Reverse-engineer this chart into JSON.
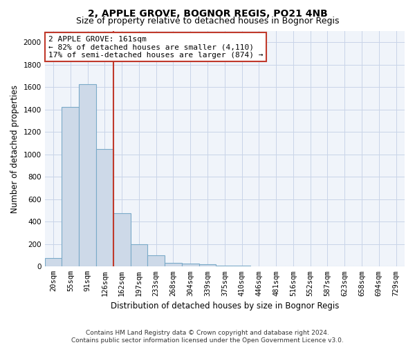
{
  "title1": "2, APPLE GROVE, BOGNOR REGIS, PO21 4NB",
  "title2": "Size of property relative to detached houses in Bognor Regis",
  "xlabel": "Distribution of detached houses by size in Bognor Regis",
  "ylabel": "Number of detached properties",
  "categories": [
    "20sqm",
    "55sqm",
    "91sqm",
    "126sqm",
    "162sqm",
    "197sqm",
    "233sqm",
    "268sqm",
    "304sqm",
    "339sqm",
    "375sqm",
    "410sqm",
    "446sqm",
    "481sqm",
    "516sqm",
    "552sqm",
    "587sqm",
    "623sqm",
    "658sqm",
    "694sqm",
    "729sqm"
  ],
  "values": [
    75,
    1425,
    1625,
    1050,
    475,
    200,
    100,
    35,
    25,
    20,
    10,
    5,
    2,
    1,
    1,
    0,
    0,
    0,
    0,
    0,
    0
  ],
  "bar_color": "#cdd9e8",
  "bar_edge_color": "#7aaac8",
  "vline_x_index": 4,
  "vline_color": "#c0392b",
  "annotation_line1": "2 APPLE GROVE: 161sqm",
  "annotation_line2": "← 82% of detached houses are smaller (4,110)",
  "annotation_line3": "17% of semi-detached houses are larger (874) →",
  "annotation_box_facecolor": "white",
  "annotation_box_edgecolor": "#c0392b",
  "ylim": [
    0,
    2100
  ],
  "yticks": [
    0,
    200,
    400,
    600,
    800,
    1000,
    1200,
    1400,
    1600,
    1800,
    2000
  ],
  "footnote": "Contains HM Land Registry data © Crown copyright and database right 2024.\nContains public sector information licensed under the Open Government Licence v3.0.",
  "bg_color": "#f0f4fa",
  "grid_color": "#c8d4e8",
  "title1_fontsize": 10,
  "title2_fontsize": 9,
  "xlabel_fontsize": 8.5,
  "ylabel_fontsize": 8.5,
  "tick_fontsize": 7.5,
  "annot_fontsize": 8,
  "footnote_fontsize": 6.5
}
